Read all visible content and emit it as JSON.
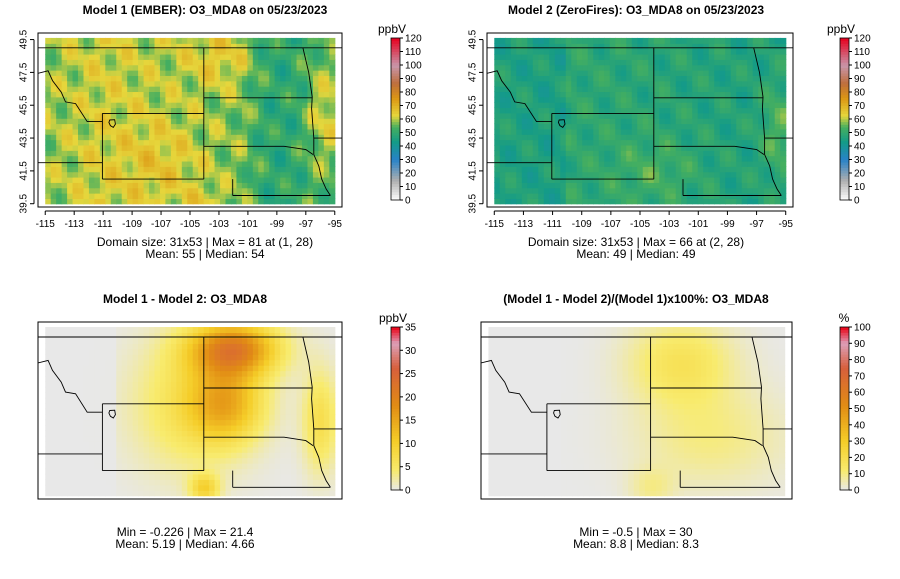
{
  "chart_data": [
    {
      "type": "heatmap",
      "title": "Model 1 (EMBER): O3_MDA8 on 05/23/2023",
      "x_ticks": [
        -115,
        -113,
        -111,
        -109,
        -107,
        -105,
        -103,
        -101,
        -99,
        -97,
        -95
      ],
      "y_ticks": [
        39.5,
        41.5,
        43.5,
        45.5,
        47.5,
        49.5
      ],
      "xlim": [
        -115.5,
        -94.5
      ],
      "ylim": [
        39.3,
        49.9
      ],
      "show_axes": true,
      "legend": {
        "unit": "ppbV",
        "min": 0,
        "max": 120,
        "ticks": [
          0,
          10,
          20,
          30,
          40,
          50,
          60,
          70,
          80,
          90,
          100,
          110,
          120
        ],
        "palette": "ozone"
      },
      "stats": [
        "Domain size: 31x53 | Max = 81 at (1, 28)",
        "Mean: 55 |  Median: 54"
      ],
      "grid_shape": [
        31,
        53
      ],
      "summary": {
        "max": 81,
        "mean": 55,
        "median": 54
      }
    },
    {
      "type": "heatmap",
      "title": "Model 2 (ZeroFires): O3_MDA8 on 05/23/2023",
      "x_ticks": [
        -115,
        -113,
        -111,
        -109,
        -107,
        -105,
        -103,
        -101,
        -99,
        -97,
        -95
      ],
      "y_ticks": [
        39.5,
        41.5,
        43.5,
        45.5,
        47.5,
        49.5
      ],
      "xlim": [
        -115.5,
        -94.5
      ],
      "ylim": [
        39.3,
        49.9
      ],
      "show_axes": true,
      "legend": {
        "unit": "ppbV",
        "min": 0,
        "max": 120,
        "ticks": [
          0,
          10,
          20,
          30,
          40,
          50,
          60,
          70,
          80,
          90,
          100,
          110,
          120
        ],
        "palette": "ozone"
      },
      "stats": [
        "Domain size: 31x53 | Max = 66 at (2, 28)",
        "Mean: 49 |  Median: 49"
      ],
      "grid_shape": [
        31,
        53
      ],
      "summary": {
        "max": 66,
        "mean": 49,
        "median": 49
      }
    },
    {
      "type": "heatmap",
      "title": "Model 1 - Model 2: O3_MDA8",
      "xlim": [
        -115.5,
        -94.5
      ],
      "ylim": [
        39.3,
        49.9
      ],
      "show_axes": false,
      "legend": {
        "unit": "ppbV",
        "min": 0,
        "max": 35,
        "ticks": [
          0,
          5,
          10,
          15,
          20,
          25,
          30,
          35
        ],
        "palette": "difference"
      },
      "stats": [
        "Min = -0.226 | Max = 21.4",
        "Mean: 5.19 |  Median: 4.66"
      ],
      "summary": {
        "min": -0.226,
        "max": 21.4,
        "mean": 5.19,
        "median": 4.66
      }
    },
    {
      "type": "heatmap",
      "title": "(Model 1 - Model 2)/(Model 1)x100%: O3_MDA8",
      "xlim": [
        -115.5,
        -94.5
      ],
      "ylim": [
        39.3,
        49.9
      ],
      "show_axes": false,
      "legend": {
        "unit": "%",
        "min": 0,
        "max": 100,
        "ticks": [
          0,
          10,
          20,
          30,
          40,
          50,
          60,
          70,
          80,
          90,
          100
        ],
        "palette": "difference"
      },
      "stats": [
        "Min = -0.5 | Max = 30",
        "Mean: 8.8 |  Median: 8.3"
      ],
      "summary": {
        "min": -0.5,
        "max": 30,
        "mean": 8.8,
        "median": 8.3
      }
    }
  ]
}
